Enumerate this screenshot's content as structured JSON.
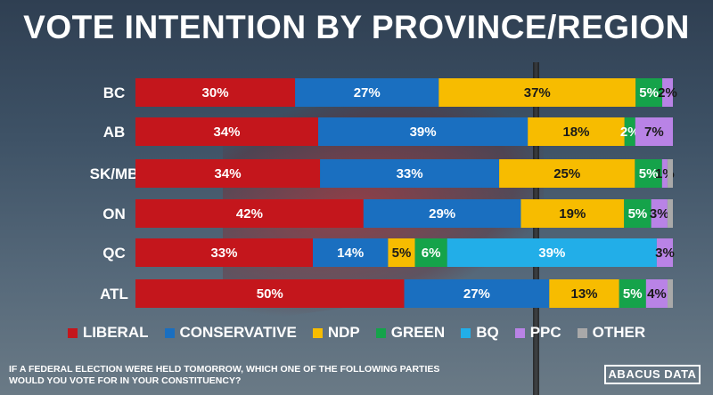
{
  "title": "VOTE INTENTION BY PROVINCE/REGION",
  "question": "IF A FEDERAL ELECTION WERE HELD TOMORROW, WHICH ONE OF THE FOLLOWING PARTIES WOULD YOU VOTE FOR IN YOUR CONSTITUENCY?",
  "logo_text": "ABACUS DATA",
  "chart_data": {
    "type": "bar",
    "orientation": "horizontal-stacked-100",
    "title": "VOTE INTENTION BY PROVINCE/REGION",
    "categories": [
      "BC",
      "AB",
      "SK/MB",
      "ON",
      "QC",
      "ATL"
    ],
    "legend_position": "bottom",
    "series": [
      {
        "name": "LIBERAL",
        "color": "#c4161c",
        "values": [
          30,
          34,
          34,
          42,
          33,
          50
        ]
      },
      {
        "name": "CONSERVATIVE",
        "color": "#1a6fc0",
        "values": [
          27,
          39,
          33,
          29,
          14,
          27
        ]
      },
      {
        "name": "NDP",
        "color": "#f7bc00",
        "values": [
          37,
          18,
          25,
          19,
          5,
          13
        ]
      },
      {
        "name": "GREEN",
        "color": "#15a34a",
        "values": [
          5,
          2,
          5,
          5,
          6,
          5
        ]
      },
      {
        "name": "BQ",
        "color": "#22aee8",
        "values": [
          0,
          0,
          0,
          0,
          39,
          0
        ]
      },
      {
        "name": "PPC",
        "color": "#b983e6",
        "values": [
          2,
          7,
          1,
          3,
          3,
          4
        ]
      },
      {
        "name": "OTHER",
        "color": "#a9a9a9",
        "values": [
          0,
          0,
          1,
          1,
          0,
          1
        ]
      }
    ],
    "labels": [
      [
        "30%",
        "27%",
        "37%",
        "5%",
        "",
        "2%",
        ""
      ],
      [
        "34%",
        "39%",
        "18%",
        "2%",
        "",
        "7%",
        ""
      ],
      [
        "34%",
        "33%",
        "25%",
        "5%",
        "",
        "1%",
        ""
      ],
      [
        "42%",
        "29%",
        "19%",
        "5%",
        "",
        "3%",
        ""
      ],
      [
        "33%",
        "14%",
        "5%",
        "6%",
        "39%",
        "3%",
        ""
      ],
      [
        "50%",
        "27%",
        "13%",
        "5%",
        "",
        "4%",
        ""
      ]
    ]
  }
}
